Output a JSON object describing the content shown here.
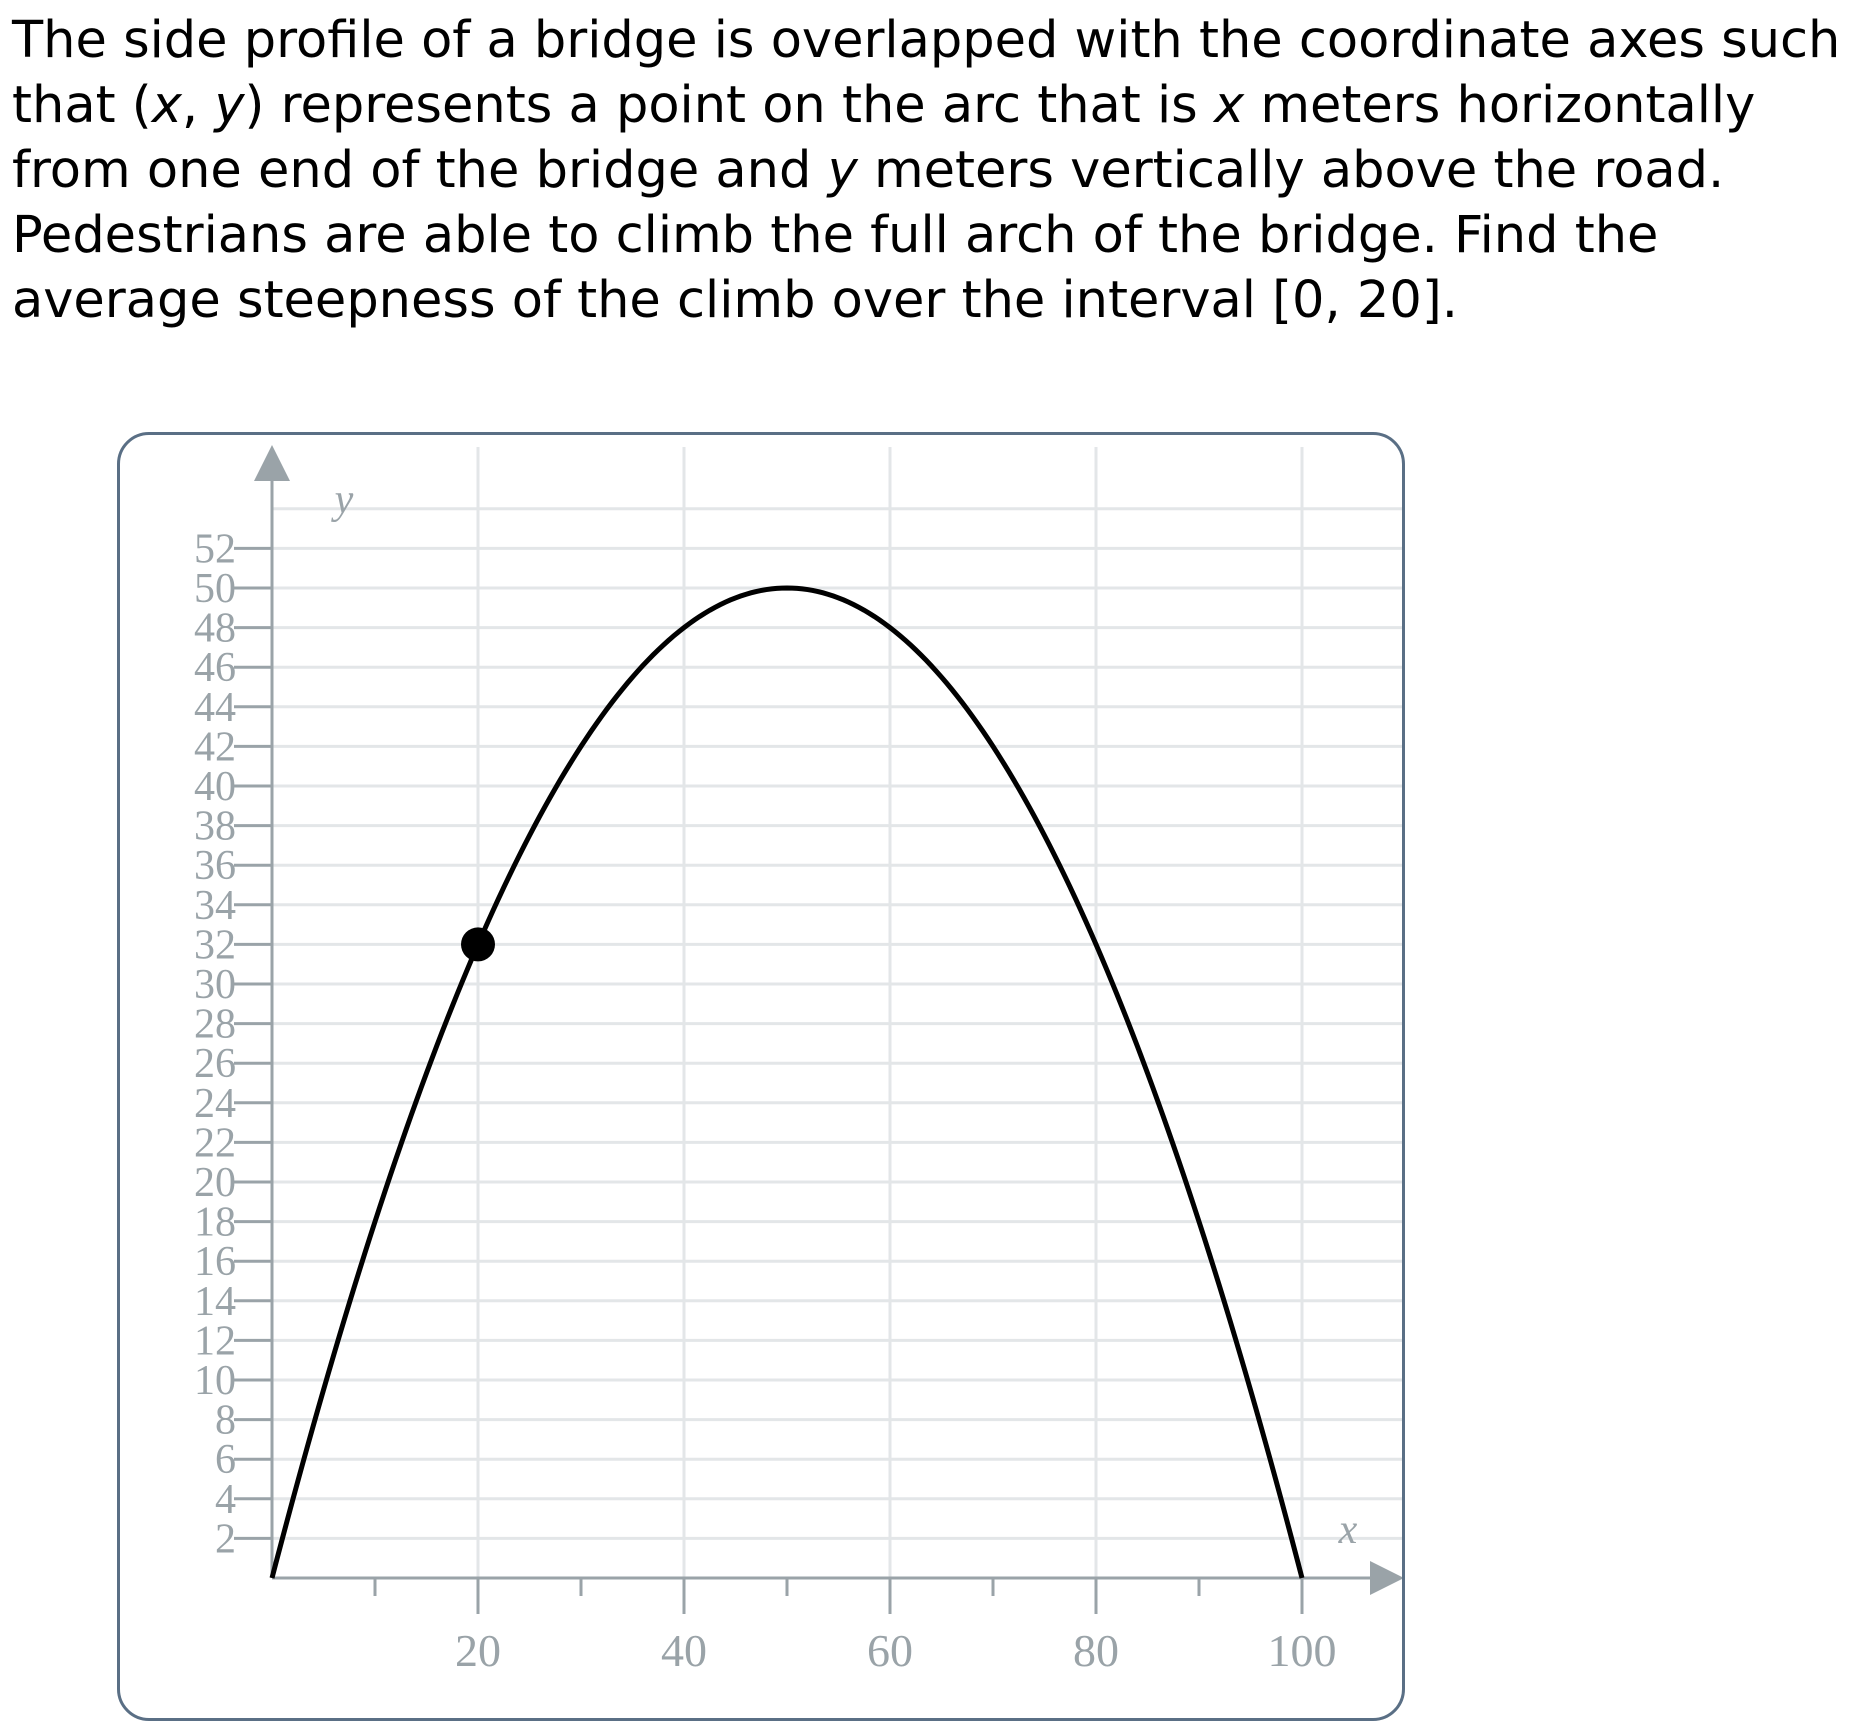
{
  "problem": {
    "line1_a": "The side profile of a bridge is overlapped with the coordinate axes such that (",
    "var_x": "x",
    "comma": ", ",
    "var_y": "y",
    "line1_b": ") represents a point on the arc that is ",
    "line1_c": " meters horizontally from one end of the bridge and ",
    "line1_d": " meters vertically above the road.",
    "line2": "Pedestrians are able to climb the full arch of the bridge. Find the average steepness of the climb over the interval [0, 20]."
  },
  "colors": {
    "grid": "#e3e6e8",
    "axis": "#9aa3a8",
    "curve": "#000000",
    "frame_border": "#5a6f85"
  },
  "chart_data": {
    "type": "line",
    "title": "",
    "xlabel": "x",
    "ylabel": "y",
    "xlim": [
      0,
      104
    ],
    "ylim": [
      0,
      54
    ],
    "x_tick_labels": [
      20,
      40,
      60,
      80,
      100
    ],
    "x_minor_ticks": [
      10,
      30,
      50,
      70,
      90
    ],
    "y_tick_labels": [
      2,
      4,
      6,
      8,
      10,
      12,
      14,
      16,
      18,
      20,
      22,
      24,
      26,
      28,
      30,
      32,
      34,
      36,
      38,
      40,
      42,
      44,
      46,
      48,
      50,
      52
    ],
    "grid": true,
    "series": [
      {
        "x": [
          0,
          5,
          10,
          15,
          20,
          25,
          30,
          35,
          40,
          45,
          50,
          55,
          60,
          65,
          70,
          75,
          80,
          85,
          90,
          95,
          100
        ],
        "y": [
          0,
          9.5,
          18,
          25.5,
          32,
          37.5,
          42,
          45.5,
          48,
          49.5,
          50,
          49.5,
          48,
          45.5,
          42,
          37.5,
          32,
          25.5,
          18,
          9.5,
          0
        ]
      }
    ],
    "highlighted_point": {
      "x": 20,
      "y": 32
    }
  }
}
